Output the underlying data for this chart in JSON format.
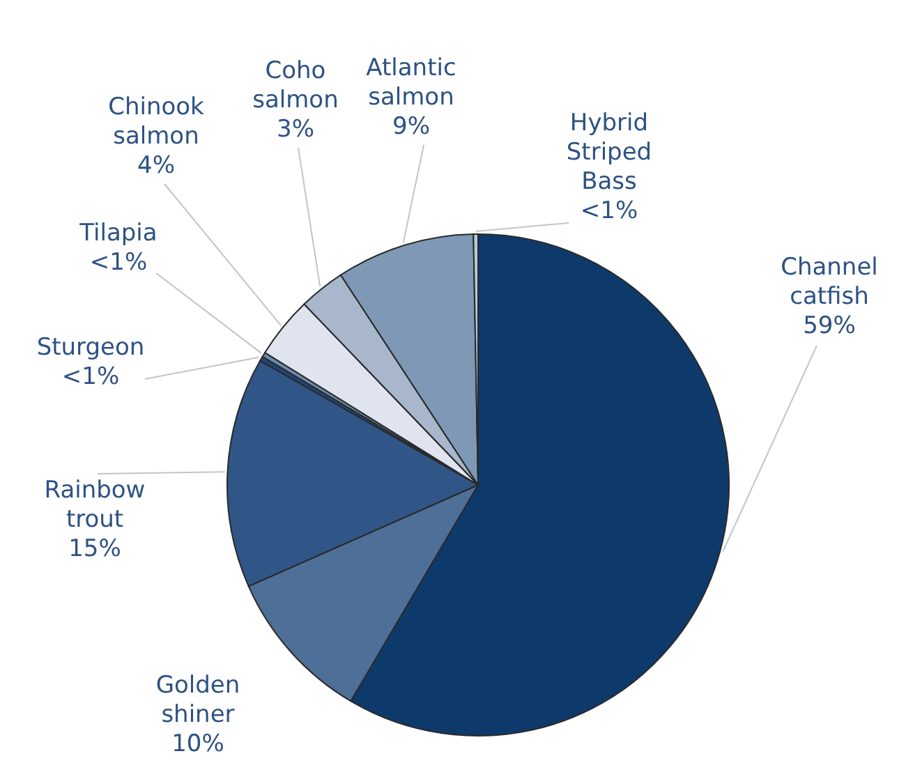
{
  "chart_data": {
    "type": "pie",
    "categories": [
      "Channel catfish",
      "Golden shiner",
      "Rainbow trout",
      "Sturgeon",
      "Tilapia",
      "Chinook salmon",
      "Coho salmon",
      "Atlantic salmon",
      "Hybrid Striped Bass"
    ],
    "values": [
      59,
      10,
      15,
      0.3,
      0.3,
      4,
      3,
      9,
      0.3
    ],
    "value_labels": [
      "59%",
      "10%",
      "15%",
      "<1%",
      "<1%",
      "4%",
      "3%",
      "9%",
      "<1%"
    ],
    "colors": [
      "#0d3a6b",
      "#4d6f98",
      "#2f5686",
      "#1f4676",
      "#6d8aab",
      "#dfe4ee",
      "#a8b7cc",
      "#7e98b6",
      "#bcc8d8"
    ]
  }
}
